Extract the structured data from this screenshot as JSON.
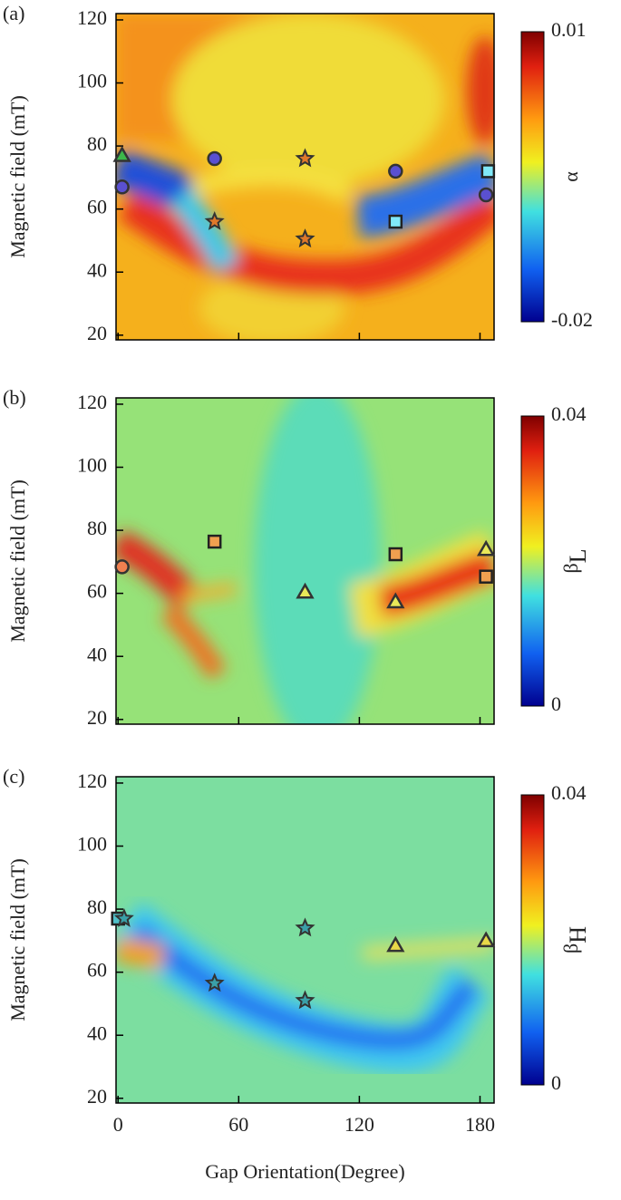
{
  "chart_data": [
    {
      "type": "scatter",
      "panel_label": "(a)",
      "ylabel": "Magnetic field (mT)",
      "xlim": [
        -1,
        187
      ],
      "ylim": [
        18.5,
        122
      ],
      "xticks": [
        0,
        60,
        120,
        180
      ],
      "yticks": [
        20,
        40,
        60,
        80,
        100,
        120
      ],
      "colorbar": {
        "label": "α",
        "lim": [
          -0.02,
          0.01
        ],
        "ticks": [
          -0.02,
          0.01
        ]
      },
      "series": [
        {
          "marker": "circle",
          "color": "#5a50d0",
          "x": [
            2,
            48,
            138,
            183
          ],
          "y": [
            67,
            76,
            72,
            64.5
          ]
        },
        {
          "marker": "star",
          "color": "#e0782a",
          "x": [
            48,
            93,
            93
          ],
          "y": [
            56,
            76,
            50.5
          ]
        },
        {
          "marker": "triangle",
          "color": "#3cb84a",
          "x": [
            2
          ],
          "y": [
            77
          ]
        },
        {
          "marker": "square",
          "color": "#80e8f8",
          "x": [
            138,
            184
          ],
          "y": [
            56,
            72
          ]
        }
      ]
    },
    {
      "type": "scatter",
      "panel_label": "(b)",
      "ylabel": "Magnetic field (mT)",
      "xlim": [
        -1,
        187
      ],
      "ylim": [
        18.5,
        122
      ],
      "xticks": [
        0,
        60,
        120,
        180
      ],
      "yticks": [
        20,
        40,
        60,
        80,
        100,
        120
      ],
      "colorbar": {
        "label": "β",
        "label_sub": "L",
        "lim": [
          0,
          0.04
        ],
        "ticks": [
          0,
          0.04
        ]
      },
      "series": [
        {
          "marker": "circle",
          "color": "#f08050",
          "x": [
            2
          ],
          "y": [
            68.4
          ]
        },
        {
          "marker": "square",
          "color": "#f0a050",
          "x": [
            48,
            138,
            183
          ],
          "y": [
            76.4,
            72.4,
            65.3
          ]
        },
        {
          "marker": "triangle",
          "color": "#e8e858",
          "x": [
            93,
            138,
            183
          ],
          "y": [
            60.4,
            57.3,
            73.9
          ]
        }
      ]
    },
    {
      "type": "scatter",
      "panel_label": "(c)",
      "ylabel": "Magnetic field (mT)",
      "xlabel": "Gap Orientation(Degree)",
      "xlim": [
        -1,
        187
      ],
      "ylim": [
        18.5,
        122
      ],
      "xticks": [
        0,
        60,
        120,
        180
      ],
      "yticks": [
        20,
        40,
        60,
        80,
        100,
        120
      ],
      "colorbar": {
        "label": "β",
        "label_sub": "H",
        "lim": [
          0,
          0.04
        ],
        "ticks": [
          0,
          0.04
        ]
      },
      "series": [
        {
          "marker": "square",
          "color": "#50c0c8",
          "x": [
            0
          ],
          "y": [
            77
          ]
        },
        {
          "marker": "star",
          "color": "#3aa0a8",
          "x": [
            3,
            48,
            93,
            93
          ],
          "y": [
            77,
            56.5,
            74,
            51
          ]
        },
        {
          "marker": "triangle",
          "color": "#e8d848",
          "x": [
            138,
            183
          ],
          "y": [
            68.5,
            70
          ]
        }
      ]
    }
  ]
}
